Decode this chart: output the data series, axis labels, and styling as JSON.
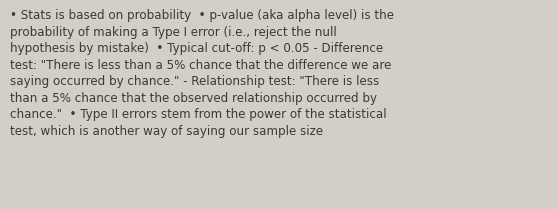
{
  "background_color": "#d3cfc7",
  "text_color": "#3a3a3a",
  "border_color": "#a8a49c",
  "font_size": 8.6,
  "font_family": "DejaVu Sans",
  "figsize": [
    5.58,
    2.09
  ],
  "dpi": 100,
  "lines": [
    "• Stats is based on probability  • p-value (aka alpha level) is the",
    "probability of making a Type I error (i.e., reject the null",
    "hypothesis by mistake)  • Typical cut-off: p < 0.05 - Difference",
    "test: \"There is less than a 5% chance that the difference we are",
    "saying occurred by chance.\" - Relationship test: \"There is less",
    "than a 5% chance that the observed relationship occurred by",
    "chance.\"  • Type II errors stem from the power of the statistical",
    "test, which is another way of saying our sample size"
  ]
}
